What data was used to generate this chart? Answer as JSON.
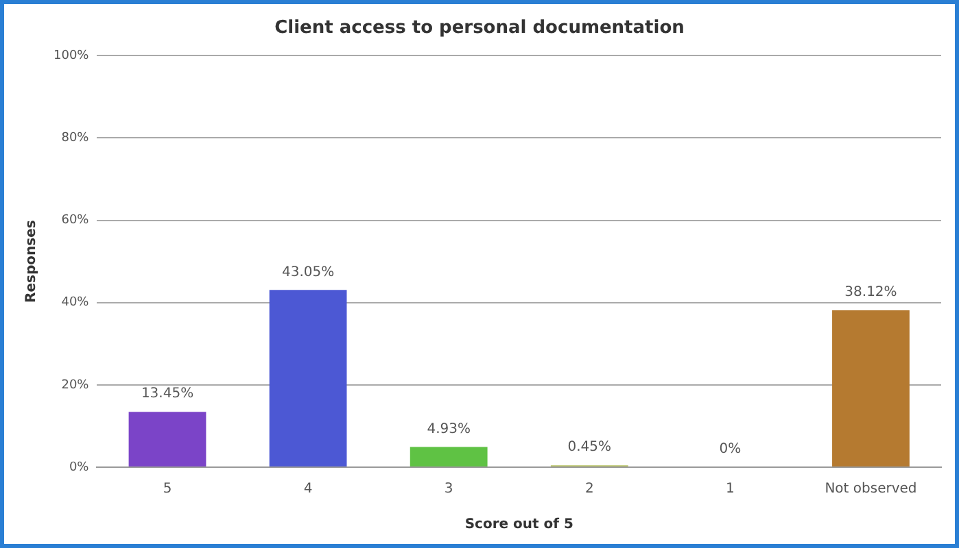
{
  "chart_data": {
    "type": "bar",
    "title": "Client access to personal documentation",
    "xlabel": "Score out of 5",
    "ylabel": "Responses",
    "categories": [
      "5",
      "4",
      "3",
      "2",
      "1",
      "Not observed"
    ],
    "values": [
      13.45,
      43.05,
      4.93,
      0.45,
      0,
      38.12
    ],
    "colors": [
      "#7b44c8",
      "#4c58d4",
      "#5fc244",
      "#b9c466",
      "#e05a5a",
      "#b57a30"
    ],
    "value_labels": [
      "13.45%",
      "43.05%",
      "4.93%",
      "0.45%",
      "0%",
      "38.12%"
    ],
    "ylim": [
      0,
      100
    ],
    "yticks": [
      {
        "value": 0,
        "label": "0%"
      },
      {
        "value": 20,
        "label": "20%"
      },
      {
        "value": 40,
        "label": "40%"
      },
      {
        "value": 60,
        "label": "60%"
      },
      {
        "value": 80,
        "label": "80%"
      },
      {
        "value": 100,
        "label": "100%"
      }
    ],
    "grid": "y",
    "legend": false
  }
}
